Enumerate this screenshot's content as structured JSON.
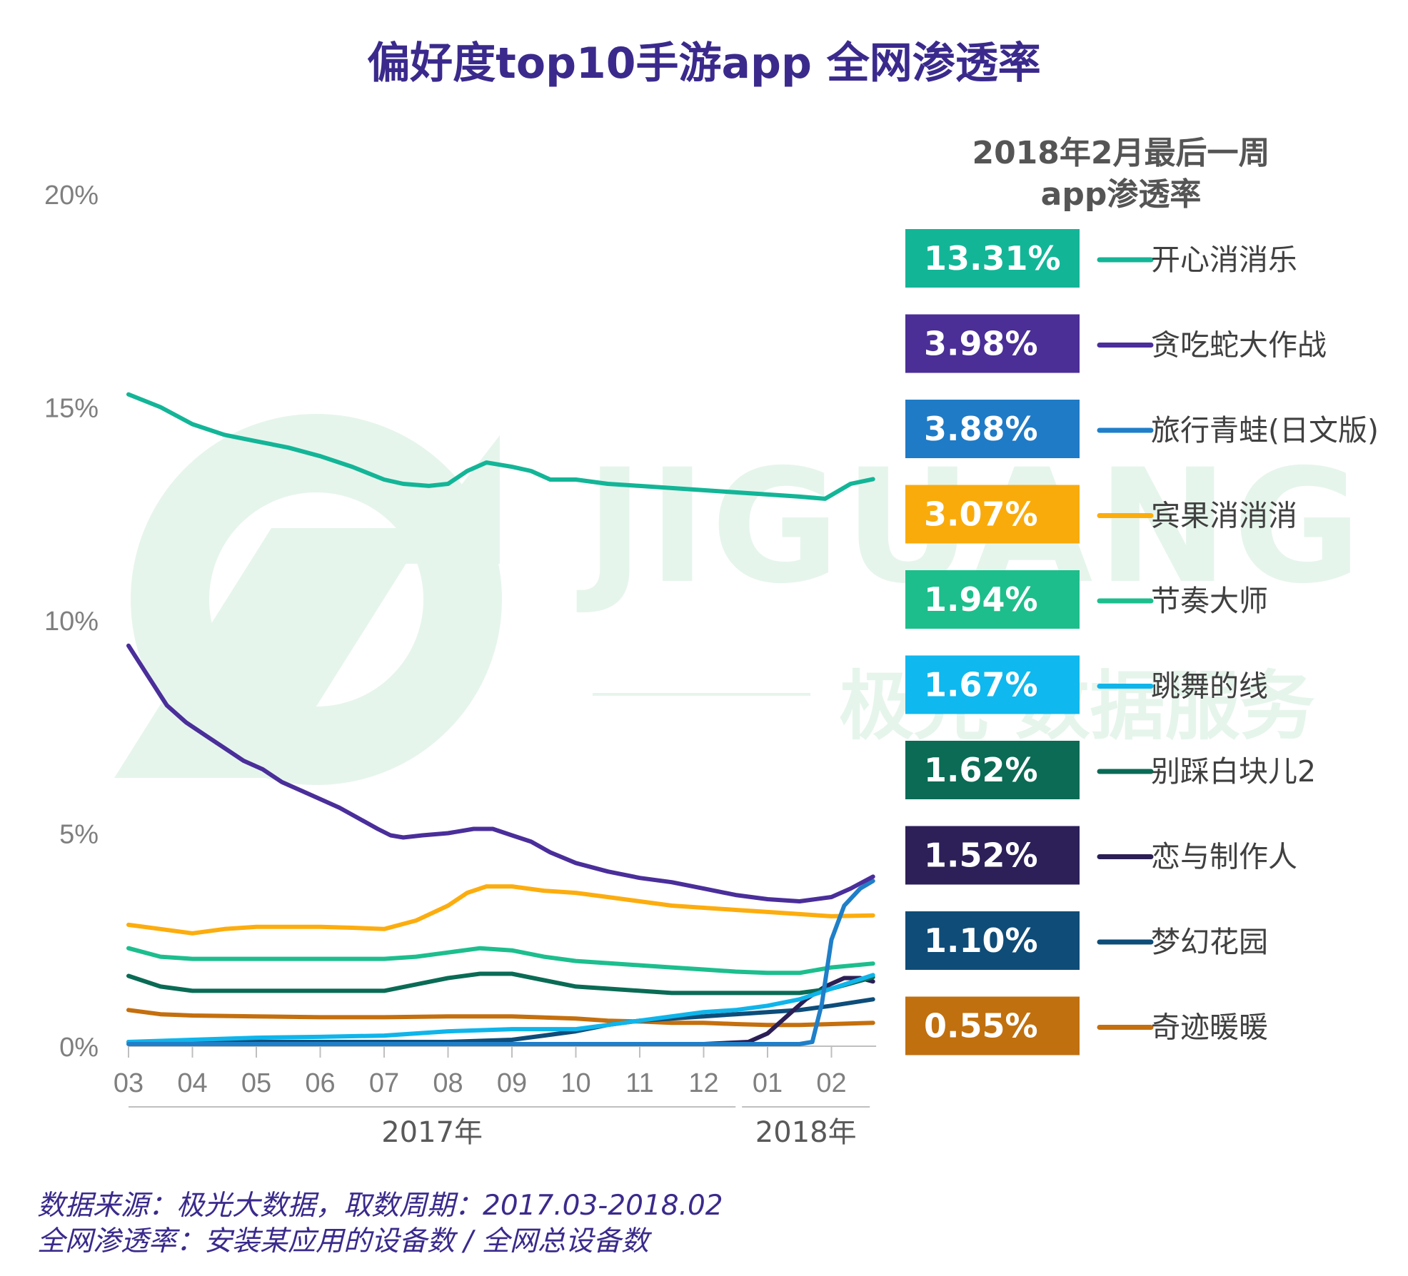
{
  "title": "偏好度top10手游app 全网渗透率",
  "panel_title_line1": "2018年2月最后一周",
  "panel_title_line2": "app渗透率",
  "watermark": {
    "brand": "JIGUANG",
    "subtitle": "极光 数据服务"
  },
  "footer": {
    "line1": "数据来源：极光大数据，取数周期：2017.03-2018.02",
    "line2": "全网渗透率：安装某应用的设备数 / 全网总设备数"
  },
  "chart_data": {
    "type": "line",
    "title": "偏好度top10手游app 全网渗透率",
    "x_tick_labels": [
      "03",
      "04",
      "05",
      "06",
      "07",
      "08",
      "09",
      "10",
      "11",
      "12",
      "01",
      "02"
    ],
    "year_labels": [
      {
        "label": "2017年",
        "from_month_index": 0,
        "to_month_index": 9.5
      },
      {
        "label": "2018年",
        "from_month_index": 9.6,
        "to_month_index": 11.6
      }
    ],
    "x_range_months": [
      0,
      11.7
    ],
    "y_tick_labels": [
      "0%",
      "5%",
      "10%",
      "15%",
      "20%"
    ],
    "ylim": [
      0,
      20
    ],
    "y_unit": "%",
    "legend_title": "2018年2月最后一周 app渗透率",
    "series": [
      {
        "name": "开心消消乐",
        "value_label": "13.31%",
        "color": "#13b597",
        "box_color": "#13b597",
        "points": [
          [
            0,
            15.3
          ],
          [
            0.5,
            15.0
          ],
          [
            1,
            14.6
          ],
          [
            1.5,
            14.35
          ],
          [
            2,
            14.2
          ],
          [
            2.5,
            14.05
          ],
          [
            3,
            13.85
          ],
          [
            3.5,
            13.6
          ],
          [
            4,
            13.3
          ],
          [
            4.3,
            13.2
          ],
          [
            4.7,
            13.15
          ],
          [
            5,
            13.2
          ],
          [
            5.3,
            13.5
          ],
          [
            5.6,
            13.7
          ],
          [
            6,
            13.6
          ],
          [
            6.3,
            13.5
          ],
          [
            6.6,
            13.3
          ],
          [
            7,
            13.3
          ],
          [
            7.5,
            13.2
          ],
          [
            8,
            13.15
          ],
          [
            8.5,
            13.1
          ],
          [
            9,
            13.05
          ],
          [
            9.5,
            13.0
          ],
          [
            10,
            12.95
          ],
          [
            10.5,
            12.9
          ],
          [
            10.9,
            12.85
          ],
          [
            11.3,
            13.2
          ],
          [
            11.65,
            13.31
          ]
        ]
      },
      {
        "name": "贪吃蛇大作战",
        "value_label": "3.98%",
        "color": "#4a2e9a",
        "box_color": "#4b2e96",
        "points": [
          [
            0,
            9.4
          ],
          [
            0.3,
            8.7
          ],
          [
            0.6,
            8.0
          ],
          [
            0.9,
            7.6
          ],
          [
            1.2,
            7.3
          ],
          [
            1.5,
            7.0
          ],
          [
            1.8,
            6.7
          ],
          [
            2.1,
            6.5
          ],
          [
            2.4,
            6.2
          ],
          [
            2.7,
            6.0
          ],
          [
            3,
            5.8
          ],
          [
            3.3,
            5.6
          ],
          [
            3.6,
            5.35
          ],
          [
            3.9,
            5.1
          ],
          [
            4.1,
            4.95
          ],
          [
            4.3,
            4.9
          ],
          [
            4.6,
            4.95
          ],
          [
            5,
            5.0
          ],
          [
            5.4,
            5.1
          ],
          [
            5.7,
            5.1
          ],
          [
            6,
            4.95
          ],
          [
            6.3,
            4.8
          ],
          [
            6.6,
            4.55
          ],
          [
            7,
            4.3
          ],
          [
            7.5,
            4.1
          ],
          [
            8,
            3.95
          ],
          [
            8.5,
            3.85
          ],
          [
            9,
            3.7
          ],
          [
            9.5,
            3.55
          ],
          [
            10,
            3.45
          ],
          [
            10.5,
            3.4
          ],
          [
            11,
            3.5
          ],
          [
            11.3,
            3.7
          ],
          [
            11.65,
            3.98
          ]
        ]
      },
      {
        "name": "旅行青蛙(日文版)",
        "value_label": "3.88%",
        "color": "#1f7fc8",
        "box_color": "#1f7bc6",
        "points": [
          [
            0,
            0.05
          ],
          [
            5,
            0.05
          ],
          [
            10,
            0.05
          ],
          [
            10.5,
            0.05
          ],
          [
            10.7,
            0.1
          ],
          [
            10.85,
            1.0
          ],
          [
            11.0,
            2.5
          ],
          [
            11.2,
            3.3
          ],
          [
            11.45,
            3.7
          ],
          [
            11.65,
            3.88
          ]
        ]
      },
      {
        "name": "宾果消消消",
        "value_label": "3.07%",
        "color": "#fcad0e",
        "box_color": "#f9ab0c",
        "points": [
          [
            0,
            2.85
          ],
          [
            0.5,
            2.75
          ],
          [
            1,
            2.65
          ],
          [
            1.5,
            2.75
          ],
          [
            2,
            2.8
          ],
          [
            2.5,
            2.8
          ],
          [
            3,
            2.8
          ],
          [
            3.5,
            2.78
          ],
          [
            4,
            2.75
          ],
          [
            4.5,
            2.95
          ],
          [
            5,
            3.3
          ],
          [
            5.3,
            3.6
          ],
          [
            5.6,
            3.75
          ],
          [
            6,
            3.75
          ],
          [
            6.5,
            3.65
          ],
          [
            7,
            3.6
          ],
          [
            7.5,
            3.5
          ],
          [
            8,
            3.4
          ],
          [
            8.5,
            3.3
          ],
          [
            9,
            3.25
          ],
          [
            9.5,
            3.2
          ],
          [
            10,
            3.15
          ],
          [
            10.5,
            3.1
          ],
          [
            11,
            3.05
          ],
          [
            11.65,
            3.07
          ]
        ]
      },
      {
        "name": "节奏大师",
        "value_label": "1.94%",
        "color": "#1dbe8e",
        "box_color": "#1dbe8b",
        "points": [
          [
            0,
            2.3
          ],
          [
            0.5,
            2.1
          ],
          [
            1,
            2.05
          ],
          [
            2,
            2.05
          ],
          [
            3,
            2.05
          ],
          [
            4,
            2.05
          ],
          [
            4.5,
            2.1
          ],
          [
            5,
            2.2
          ],
          [
            5.5,
            2.3
          ],
          [
            6,
            2.25
          ],
          [
            6.5,
            2.1
          ],
          [
            7,
            2.0
          ],
          [
            7.5,
            1.95
          ],
          [
            8,
            1.9
          ],
          [
            8.5,
            1.85
          ],
          [
            9,
            1.8
          ],
          [
            9.5,
            1.75
          ],
          [
            10,
            1.72
          ],
          [
            10.5,
            1.72
          ],
          [
            11,
            1.85
          ],
          [
            11.65,
            1.94
          ]
        ]
      },
      {
        "name": "跳舞的线",
        "value_label": "1.67%",
        "color": "#0fb5ea",
        "box_color": "#0fb8ee",
        "points": [
          [
            0,
            0.1
          ],
          [
            1,
            0.15
          ],
          [
            2,
            0.2
          ],
          [
            3,
            0.22
          ],
          [
            4,
            0.25
          ],
          [
            5,
            0.35
          ],
          [
            6,
            0.4
          ],
          [
            7,
            0.4
          ],
          [
            7.5,
            0.5
          ],
          [
            8,
            0.6
          ],
          [
            8.5,
            0.7
          ],
          [
            9,
            0.8
          ],
          [
            9.5,
            0.85
          ],
          [
            10,
            0.95
          ],
          [
            10.5,
            1.1
          ],
          [
            11,
            1.35
          ],
          [
            11.65,
            1.67
          ]
        ]
      },
      {
        "name": "别踩白块儿2",
        "value_label": "1.62%",
        "color": "#0a6b55",
        "box_color": "#0b6b55",
        "points": [
          [
            0,
            1.65
          ],
          [
            0.5,
            1.4
          ],
          [
            1,
            1.3
          ],
          [
            2,
            1.3
          ],
          [
            3,
            1.3
          ],
          [
            4,
            1.3
          ],
          [
            4.5,
            1.45
          ],
          [
            5,
            1.6
          ],
          [
            5.5,
            1.7
          ],
          [
            6,
            1.7
          ],
          [
            6.5,
            1.55
          ],
          [
            7,
            1.4
          ],
          [
            7.5,
            1.35
          ],
          [
            8,
            1.3
          ],
          [
            8.5,
            1.25
          ],
          [
            9,
            1.25
          ],
          [
            9.5,
            1.25
          ],
          [
            10,
            1.25
          ],
          [
            10.5,
            1.25
          ],
          [
            11,
            1.35
          ],
          [
            11.65,
            1.62
          ]
        ]
      },
      {
        "name": "恋与制作人",
        "value_label": "1.52%",
        "color": "#2b1f55",
        "box_color": "#2d1f58",
        "points": [
          [
            4.3,
            0.05
          ],
          [
            6,
            0.05
          ],
          [
            7,
            0.05
          ],
          [
            8,
            0.05
          ],
          [
            9,
            0.05
          ],
          [
            9.7,
            0.1
          ],
          [
            10,
            0.3
          ],
          [
            10.3,
            0.7
          ],
          [
            10.6,
            1.1
          ],
          [
            10.9,
            1.4
          ],
          [
            11.2,
            1.6
          ],
          [
            11.45,
            1.6
          ],
          [
            11.65,
            1.52
          ]
        ]
      },
      {
        "name": "梦幻花园",
        "value_label": "1.10%",
        "color": "#0d4d7a",
        "box_color": "#0f4c78",
        "points": [
          [
            0,
            0.1
          ],
          [
            1,
            0.1
          ],
          [
            2,
            0.1
          ],
          [
            3,
            0.1
          ],
          [
            4,
            0.1
          ],
          [
            5,
            0.1
          ],
          [
            6,
            0.15
          ],
          [
            6.5,
            0.25
          ],
          [
            7,
            0.35
          ],
          [
            7.5,
            0.5
          ],
          [
            8,
            0.6
          ],
          [
            8.5,
            0.65
          ],
          [
            9,
            0.7
          ],
          [
            9.5,
            0.75
          ],
          [
            10,
            0.8
          ],
          [
            10.5,
            0.85
          ],
          [
            11,
            0.95
          ],
          [
            11.65,
            1.1
          ]
        ]
      },
      {
        "name": "奇迹暖暖",
        "value_label": "0.55%",
        "color": "#c46f0e",
        "box_color": "#c0700f",
        "points": [
          [
            0,
            0.85
          ],
          [
            0.5,
            0.75
          ],
          [
            1,
            0.72
          ],
          [
            2,
            0.7
          ],
          [
            3,
            0.68
          ],
          [
            4,
            0.68
          ],
          [
            5,
            0.7
          ],
          [
            6,
            0.7
          ],
          [
            7,
            0.65
          ],
          [
            7.5,
            0.6
          ],
          [
            8,
            0.58
          ],
          [
            8.5,
            0.55
          ],
          [
            9,
            0.55
          ],
          [
            9.5,
            0.52
          ],
          [
            10,
            0.5
          ],
          [
            10.5,
            0.5
          ],
          [
            11,
            0.52
          ],
          [
            11.65,
            0.55
          ]
        ]
      }
    ]
  }
}
